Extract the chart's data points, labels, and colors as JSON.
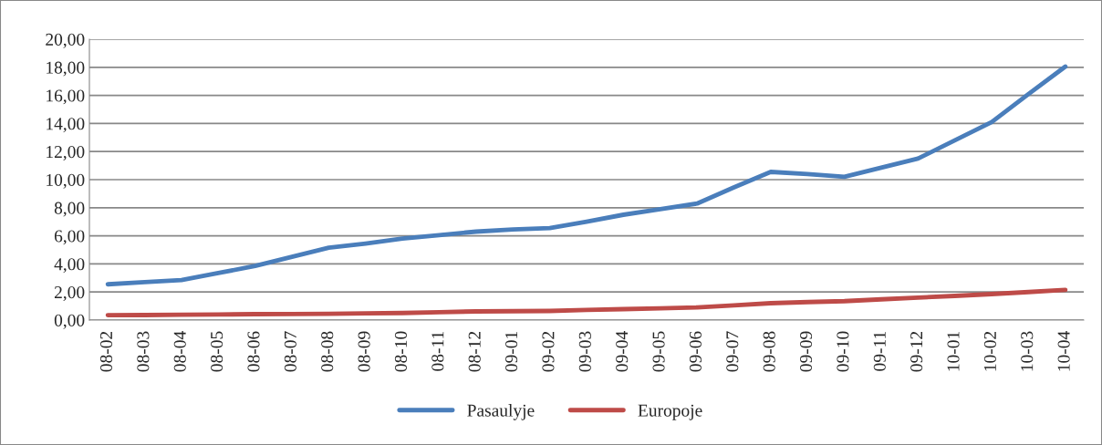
{
  "chart_data": {
    "type": "line",
    "categories": [
      "08-02",
      "08-03",
      "08-04",
      "08-05",
      "08-06",
      "08-07",
      "08-08",
      "08-09",
      "08-10",
      "08-11",
      "08-12",
      "09-01",
      "09-02",
      "09-03",
      "09-04",
      "09-05",
      "09-06",
      "09-07",
      "09-08",
      "09-09",
      "09-10",
      "09-11",
      "09-12",
      "10-01",
      "10-02",
      "10-03",
      "10-04"
    ],
    "series": [
      {
        "name": "Pasaulyje",
        "color": "#4a7ebb",
        "values": [
          2.55,
          2.7,
          2.85,
          3.35,
          3.85,
          4.5,
          5.15,
          5.45,
          5.8,
          6.05,
          6.3,
          6.45,
          6.55,
          7.0,
          7.5,
          7.9,
          8.3,
          9.45,
          10.55,
          10.4,
          10.2,
          10.85,
          11.5,
          12.8,
          14.1,
          16.1,
          18.05
        ]
      },
      {
        "name": "Europoje",
        "color": "#be4b48",
        "values": [
          0.35,
          0.36,
          0.38,
          0.4,
          0.42,
          0.43,
          0.45,
          0.48,
          0.5,
          0.56,
          0.62,
          0.63,
          0.65,
          0.72,
          0.78,
          0.84,
          0.9,
          1.05,
          1.2,
          1.28,
          1.35,
          1.48,
          1.6,
          1.72,
          1.85,
          2.0,
          2.15
        ]
      }
    ],
    "ylim": [
      0,
      20
    ],
    "yticks": [
      {
        "value": 0,
        "label": "0,00"
      },
      {
        "value": 2,
        "label": "2,00"
      },
      {
        "value": 4,
        "label": "4,00"
      },
      {
        "value": 6,
        "label": "6,00"
      },
      {
        "value": 8,
        "label": "8,00"
      },
      {
        "value": 10,
        "label": "10,00"
      },
      {
        "value": 12,
        "label": "12,00"
      },
      {
        "value": 14,
        "label": "14,00"
      },
      {
        "value": 16,
        "label": "16,00"
      },
      {
        "value": 18,
        "label": "18,00"
      },
      {
        "value": 20,
        "label": "20,00"
      }
    ],
    "grid": "y",
    "legend": "bottom",
    "marker": "none",
    "line_style": "solid"
  }
}
